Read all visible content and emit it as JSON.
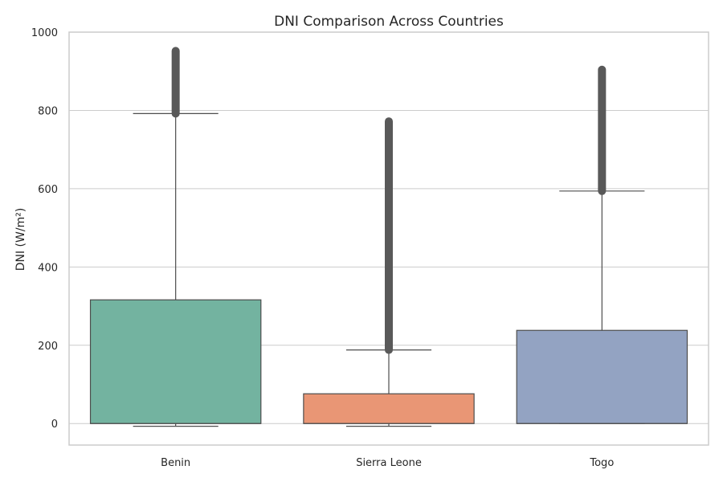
{
  "chart_data": {
    "type": "box",
    "title": "DNI Comparison Across Countries",
    "xlabel": "",
    "ylabel": "DNI (W/m²)",
    "ylim": [
      -55,
      1000
    ],
    "yticks": [
      0,
      200,
      400,
      600,
      800,
      1000
    ],
    "grid": "horizontal",
    "categories": [
      "Benin",
      "Sierra Leone",
      "Togo"
    ],
    "boxes": [
      {
        "name": "Benin",
        "color": "#73b3a0",
        "whisker_low": -7,
        "q1": 0,
        "median": 0,
        "q3": 316,
        "whisker_high": 792,
        "outliers_min": 792,
        "outliers_max": 952
      },
      {
        "name": "Sierra Leone",
        "color": "#e99675",
        "whisker_low": -7,
        "q1": 0,
        "median": 0,
        "q3": 76,
        "whisker_high": 188,
        "outliers_min": 188,
        "outliers_max": 772
      },
      {
        "name": "Togo",
        "color": "#93a3c2",
        "whisker_low": 0,
        "q1": 0,
        "median": 0,
        "q3": 238,
        "whisker_high": 594,
        "outliers_min": 594,
        "outliers_max": 904
      }
    ]
  }
}
